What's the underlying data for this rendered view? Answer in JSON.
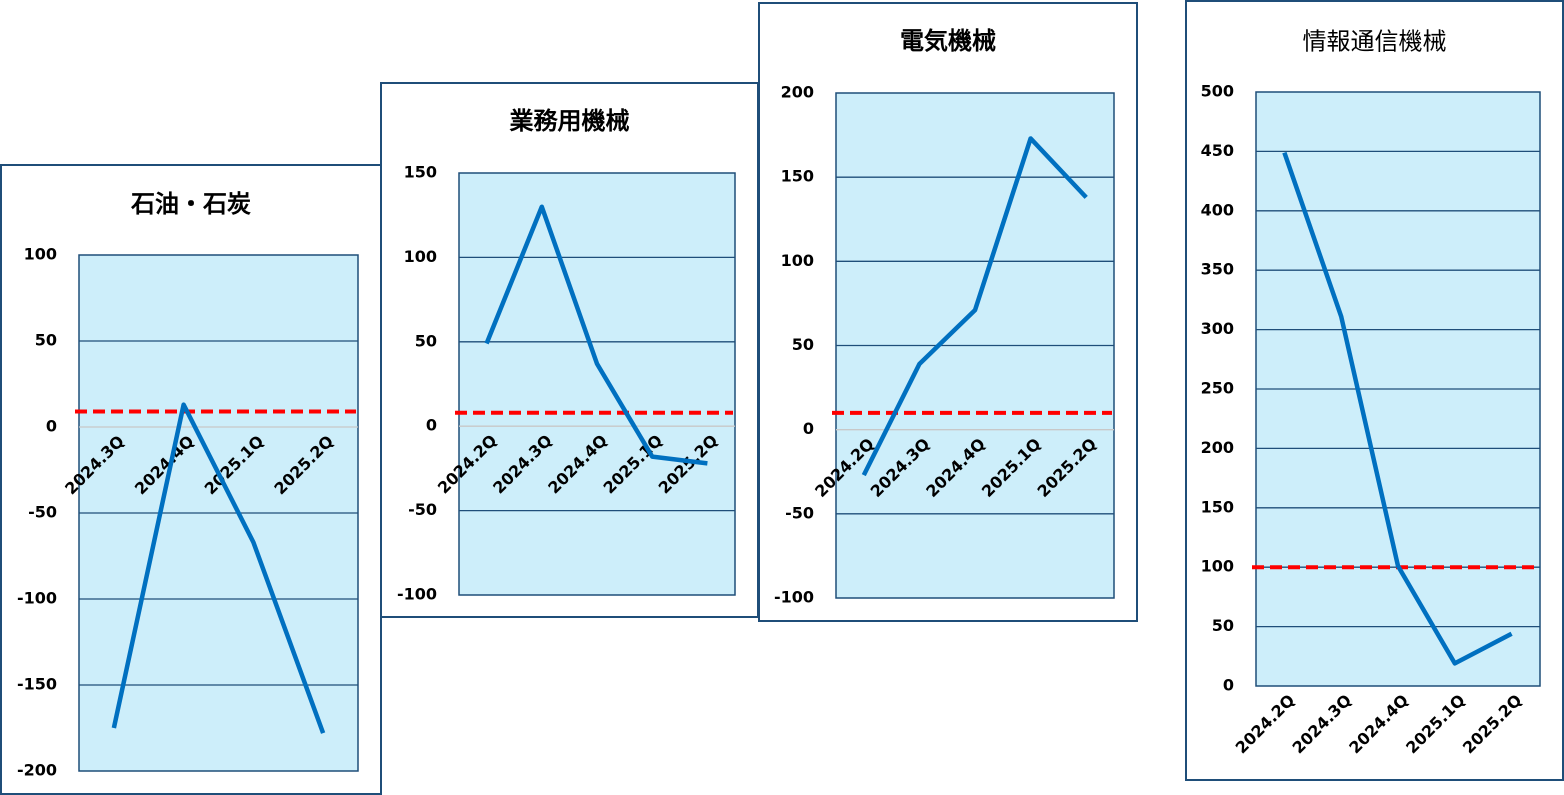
{
  "chart_data": [
    {
      "type": "line",
      "title": "石油・石炭",
      "categories": [
        "2024.3Q",
        "2024.4Q",
        "2025.1Q",
        "2025.2Q"
      ],
      "values": [
        -175,
        13,
        -67,
        -178
      ],
      "color": "#0070c0",
      "reference_line": 9,
      "reference_color": "#ff0000",
      "ylim": [
        -200,
        100
      ],
      "yticks": [
        -200,
        -150,
        -100,
        -50,
        0,
        50,
        100
      ],
      "grid": true,
      "negative_tick_color": "#ff0000"
    },
    {
      "type": "line",
      "title": "業務用機械",
      "categories": [
        "2024.2Q",
        "2024.3Q",
        "2024.4Q",
        "2025.1Q",
        "2025.2Q"
      ],
      "values": [
        49,
        130,
        37,
        -18,
        -22
      ],
      "color": "#0070c0",
      "reference_line": 8,
      "reference_color": "#ff0000",
      "ylim": [
        -100,
        150
      ],
      "yticks": [
        -100,
        -50,
        0,
        50,
        100,
        150
      ],
      "grid": true,
      "negative_tick_color": "#ff0000"
    },
    {
      "type": "line",
      "title": "電気機械",
      "categories": [
        "2024.2Q",
        "2024.3Q",
        "2024.4Q",
        "2025.1Q",
        "2025.2Q"
      ],
      "values": [
        -27,
        39,
        71,
        173,
        138
      ],
      "color": "#0070c0",
      "reference_line": 10,
      "reference_color": "#ff0000",
      "ylim": [
        -100,
        200
      ],
      "yticks": [
        -100,
        -50,
        0,
        50,
        100,
        150,
        200
      ],
      "grid": true,
      "negative_tick_color": "#ff0000"
    },
    {
      "type": "line",
      "title": "情報通信機械",
      "categories": [
        "2024.2Q",
        "2024.3Q",
        "2024.4Q",
        "2025.1Q",
        "2025.2Q"
      ],
      "values": [
        449,
        311,
        101,
        19,
        44
      ],
      "color": "#0070c0",
      "reference_line": 100,
      "reference_color": "#ff0000",
      "ylim": [
        0,
        500
      ],
      "yticks": [
        0,
        50,
        100,
        150,
        200,
        250,
        300,
        350,
        400,
        450,
        500
      ],
      "grid": true,
      "negative_tick_color": "#ff0000"
    }
  ]
}
